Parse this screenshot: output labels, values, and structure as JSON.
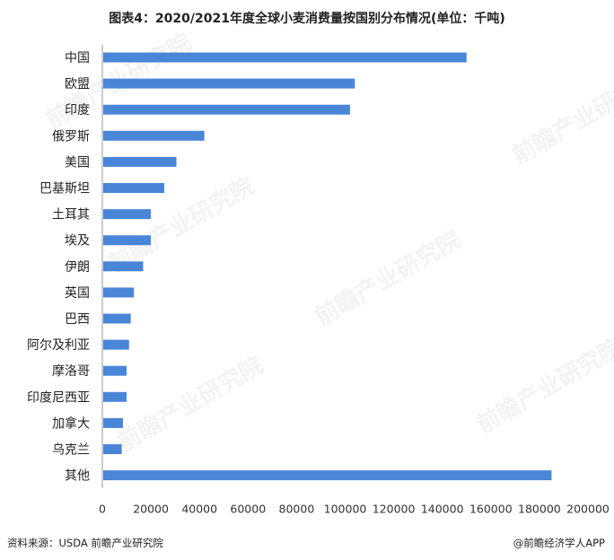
{
  "title": "图表4：2020/2021年度全球小麦消费量按国别分布情况(单位：千吨)",
  "footer": {
    "source": "资料来源：USDA 前瞻产业研究院",
    "brand": "@前瞻经济学人APP"
  },
  "watermark": "前瞻产业研究院",
  "colors": {
    "bar": "#4a86d8",
    "text": "#222222"
  },
  "chart_data": {
    "type": "bar",
    "orientation": "horizontal",
    "categories": [
      "中国",
      "欧盟",
      "印度",
      "俄罗斯",
      "美国",
      "巴基斯坦",
      "土耳其",
      "埃及",
      "伊朗",
      "英国",
      "巴西",
      "阿尔及利亚",
      "摩洛哥",
      "印度尼西亚",
      "加拿大",
      "乌克兰",
      "其他"
    ],
    "values": [
      150000,
      104000,
      102000,
      42000,
      30500,
      25500,
      20000,
      20000,
      16800,
      13000,
      11700,
      11000,
      10000,
      10000,
      8500,
      8000,
      185000
    ],
    "xlim": [
      0,
      200000
    ],
    "xticks": [
      "0",
      "20000",
      "40000",
      "60000",
      "80000",
      "100000",
      "120000",
      "140000",
      "160000",
      "180000",
      "200000"
    ],
    "title": "图表4：2020/2021年度全球小麦消费量按国别分布情况(单位：千吨)",
    "xlabel": "",
    "ylabel": "",
    "grid": false,
    "legend": "none"
  }
}
